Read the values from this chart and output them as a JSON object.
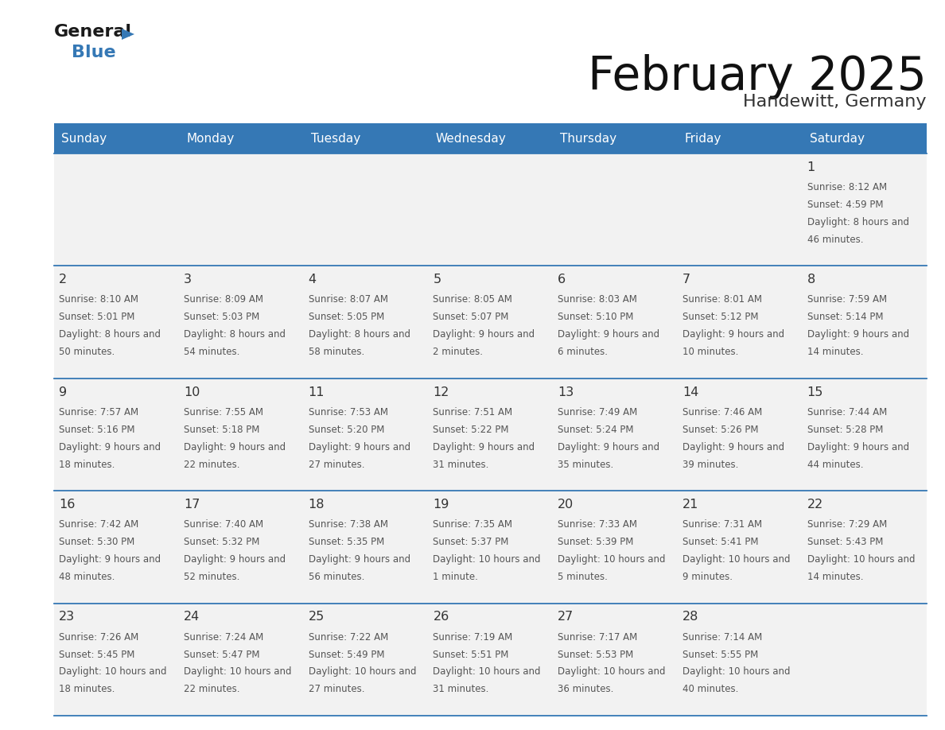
{
  "title": "February 2025",
  "subtitle": "Handewitt, Germany",
  "days_of_week": [
    "Sunday",
    "Monday",
    "Tuesday",
    "Wednesday",
    "Thursday",
    "Friday",
    "Saturday"
  ],
  "header_bg": "#3578b5",
  "header_text": "#ffffff",
  "cell_bg": "#f2f2f2",
  "divider_color": "#3578b5",
  "day_num_color": "#333333",
  "info_text_color": "#555555",
  "title_color": "#111111",
  "subtitle_color": "#333333",
  "calendar_data": [
    [
      null,
      null,
      null,
      null,
      null,
      null,
      {
        "day": 1,
        "sunrise": "8:12 AM",
        "sunset": "4:59 PM",
        "daylight": "8 hours and 46 minutes."
      }
    ],
    [
      {
        "day": 2,
        "sunrise": "8:10 AM",
        "sunset": "5:01 PM",
        "daylight": "8 hours and 50 minutes."
      },
      {
        "day": 3,
        "sunrise": "8:09 AM",
        "sunset": "5:03 PM",
        "daylight": "8 hours and 54 minutes."
      },
      {
        "day": 4,
        "sunrise": "8:07 AM",
        "sunset": "5:05 PM",
        "daylight": "8 hours and 58 minutes."
      },
      {
        "day": 5,
        "sunrise": "8:05 AM",
        "sunset": "5:07 PM",
        "daylight": "9 hours and 2 minutes."
      },
      {
        "day": 6,
        "sunrise": "8:03 AM",
        "sunset": "5:10 PM",
        "daylight": "9 hours and 6 minutes."
      },
      {
        "day": 7,
        "sunrise": "8:01 AM",
        "sunset": "5:12 PM",
        "daylight": "9 hours and 10 minutes."
      },
      {
        "day": 8,
        "sunrise": "7:59 AM",
        "sunset": "5:14 PM",
        "daylight": "9 hours and 14 minutes."
      }
    ],
    [
      {
        "day": 9,
        "sunrise": "7:57 AM",
        "sunset": "5:16 PM",
        "daylight": "9 hours and 18 minutes."
      },
      {
        "day": 10,
        "sunrise": "7:55 AM",
        "sunset": "5:18 PM",
        "daylight": "9 hours and 22 minutes."
      },
      {
        "day": 11,
        "sunrise": "7:53 AM",
        "sunset": "5:20 PM",
        "daylight": "9 hours and 27 minutes."
      },
      {
        "day": 12,
        "sunrise": "7:51 AM",
        "sunset": "5:22 PM",
        "daylight": "9 hours and 31 minutes."
      },
      {
        "day": 13,
        "sunrise": "7:49 AM",
        "sunset": "5:24 PM",
        "daylight": "9 hours and 35 minutes."
      },
      {
        "day": 14,
        "sunrise": "7:46 AM",
        "sunset": "5:26 PM",
        "daylight": "9 hours and 39 minutes."
      },
      {
        "day": 15,
        "sunrise": "7:44 AM",
        "sunset": "5:28 PM",
        "daylight": "9 hours and 44 minutes."
      }
    ],
    [
      {
        "day": 16,
        "sunrise": "7:42 AM",
        "sunset": "5:30 PM",
        "daylight": "9 hours and 48 minutes."
      },
      {
        "day": 17,
        "sunrise": "7:40 AM",
        "sunset": "5:32 PM",
        "daylight": "9 hours and 52 minutes."
      },
      {
        "day": 18,
        "sunrise": "7:38 AM",
        "sunset": "5:35 PM",
        "daylight": "9 hours and 56 minutes."
      },
      {
        "day": 19,
        "sunrise": "7:35 AM",
        "sunset": "5:37 PM",
        "daylight": "10 hours and 1 minute."
      },
      {
        "day": 20,
        "sunrise": "7:33 AM",
        "sunset": "5:39 PM",
        "daylight": "10 hours and 5 minutes."
      },
      {
        "day": 21,
        "sunrise": "7:31 AM",
        "sunset": "5:41 PM",
        "daylight": "10 hours and 9 minutes."
      },
      {
        "day": 22,
        "sunrise": "7:29 AM",
        "sunset": "5:43 PM",
        "daylight": "10 hours and 14 minutes."
      }
    ],
    [
      {
        "day": 23,
        "sunrise": "7:26 AM",
        "sunset": "5:45 PM",
        "daylight": "10 hours and 18 minutes."
      },
      {
        "day": 24,
        "sunrise": "7:24 AM",
        "sunset": "5:47 PM",
        "daylight": "10 hours and 22 minutes."
      },
      {
        "day": 25,
        "sunrise": "7:22 AM",
        "sunset": "5:49 PM",
        "daylight": "10 hours and 27 minutes."
      },
      {
        "day": 26,
        "sunrise": "7:19 AM",
        "sunset": "5:51 PM",
        "daylight": "10 hours and 31 minutes."
      },
      {
        "day": 27,
        "sunrise": "7:17 AM",
        "sunset": "5:53 PM",
        "daylight": "10 hours and 36 minutes."
      },
      {
        "day": 28,
        "sunrise": "7:14 AM",
        "sunset": "5:55 PM",
        "daylight": "10 hours and 40 minutes."
      },
      null
    ]
  ]
}
